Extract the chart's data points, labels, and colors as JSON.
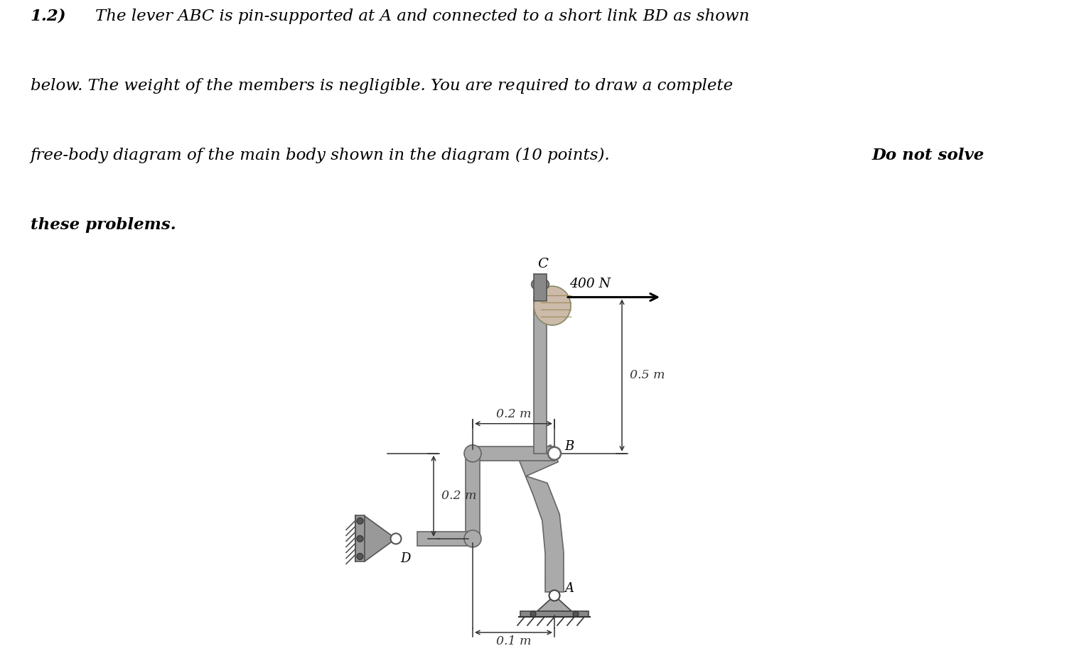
{
  "background_color": "#ffffff",
  "text_color": "#000000",
  "font_size_body": 16.5,
  "font_size_label": 13,
  "font_size_dim": 12.5,
  "line1": "1.2) The lever ABC is pin-supported at A and connected to a short link BD as shown",
  "line2": "below. The weight of the members is negligible. You are required to draw a complete",
  "line3_normal": "free-body diagram of the main body shown in the diagram (10 points). ",
  "line3_bold": "Do not solve",
  "line4_bold": "these problems.",
  "force_label": "400 N",
  "dim_05": "0.5 m",
  "dim_02h": "0.2 m",
  "dim_02v": "0.2 m",
  "dim_01": "0.1 m",
  "label_A": "A",
  "label_B": "B",
  "label_C": "C",
  "label_D": "D",
  "rod_color": "#aaaaaa",
  "rod_edge": "#666666",
  "arm_color": "#aaaaaa",
  "arm_edge": "#666666",
  "bracket_color": "#999999",
  "bracket_edge": "#555555",
  "support_color": "#aaaaaa",
  "support_edge": "#444444",
  "pin_color": "#ffffff",
  "ground_color": "#555555",
  "dim_color": "#333333"
}
